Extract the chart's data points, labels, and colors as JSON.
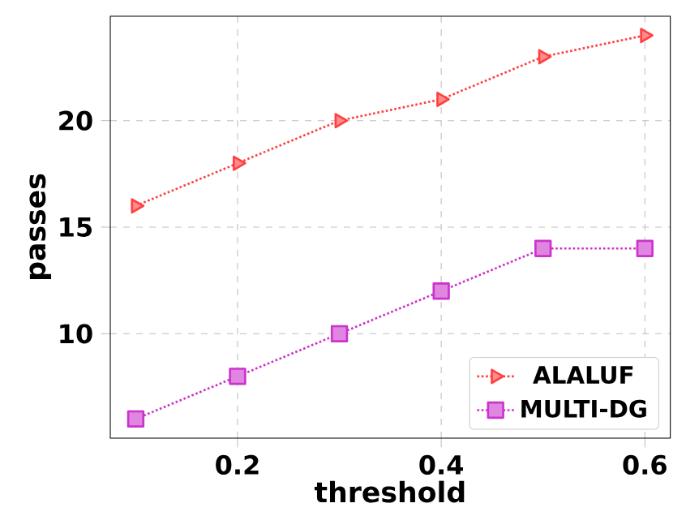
{
  "chart_data": {
    "type": "line",
    "xlabel": "threshold",
    "ylabel": "passes",
    "x": [
      0.1,
      0.2,
      0.3,
      0.4,
      0.5,
      0.6
    ],
    "series": [
      {
        "name": "ALALUF",
        "color": "#ff4040",
        "marker": "triangle",
        "values": [
          16,
          18,
          20,
          21,
          23,
          24
        ]
      },
      {
        "name": "MULTI-DG",
        "color": "#cc33cc",
        "marker": "square",
        "values": [
          6,
          8,
          10,
          12,
          14,
          14
        ]
      }
    ],
    "xlim": [
      0.075,
      0.625
    ],
    "ylim": [
      5.1,
      24.9
    ],
    "xticks": [
      0.2,
      0.4,
      0.6
    ],
    "yticks": [
      10,
      15,
      20
    ],
    "grid": true,
    "legend": "bottom right",
    "line_style": "dotted"
  }
}
